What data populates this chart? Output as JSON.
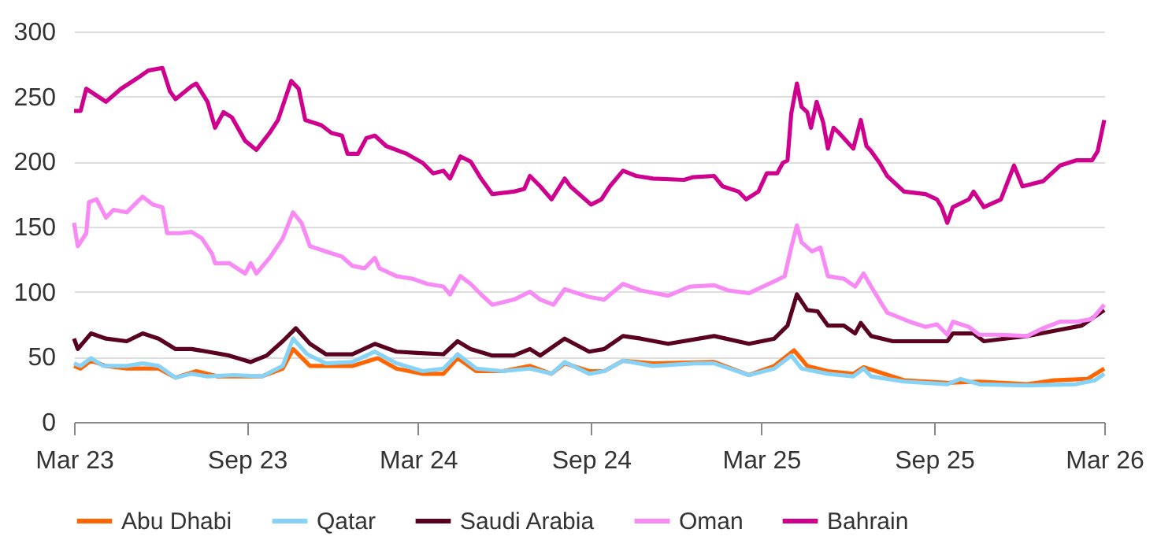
{
  "chart_data": {
    "type": "line",
    "xlim": [
      "2023-03-01",
      "2026-03-01"
    ],
    "xticks": [
      {
        "value": "2023-03-01",
        "label": "Mar 23"
      },
      {
        "value": "2023-09-01",
        "label": "Sep 23"
      },
      {
        "value": "2024-03-01",
        "label": "Mar 24"
      },
      {
        "value": "2024-09-01",
        "label": "Sep 24"
      },
      {
        "value": "2025-03-01",
        "label": "Mar 25"
      },
      {
        "value": "2025-09-01",
        "label": "Sep 25"
      },
      {
        "value": "2026-03-01",
        "label": "Mar 26"
      }
    ],
    "ylim": [
      0,
      300
    ],
    "yticks": [
      0,
      50,
      100,
      150,
      200,
      250,
      300
    ],
    "grid": "y",
    "legend": "bottom",
    "marker": "none",
    "line_style": "solid",
    "series": [
      {
        "name": "Abu Dhabi",
        "color": "#ff6600",
        "x": [
          "2023-03-01",
          "2023-03-08",
          "2023-03-19",
          "2023-04-04",
          "2023-04-26",
          "2023-05-30",
          "2023-06-17",
          "2023-07-09",
          "2023-08-01",
          "2023-09-17",
          "2023-10-09",
          "2023-10-20",
          "2023-11-07",
          "2023-11-24",
          "2023-12-22",
          "2024-01-18",
          "2024-02-07",
          "2024-03-06",
          "2024-03-28",
          "2024-04-12",
          "2024-05-02",
          "2024-05-30",
          "2024-06-28",
          "2024-07-21",
          "2024-08-04",
          "2024-08-30",
          "2024-09-15",
          "2024-10-05",
          "2024-11-06",
          "2025-01-10",
          "2025-02-16",
          "2025-03-15",
          "2025-04-05",
          "2025-04-19",
          "2025-05-11",
          "2025-06-07",
          "2025-06-18",
          "2025-07-31",
          "2025-09-15",
          "2025-10-19",
          "2025-12-09",
          "2026-01-07",
          "2026-02-11",
          "2026-03-01"
        ],
        "values": [
          43,
          41,
          47,
          43,
          41,
          41,
          34,
          39,
          35,
          35,
          41,
          56,
          43,
          43,
          43,
          49,
          41,
          37,
          37,
          49,
          39,
          39,
          43,
          37,
          45,
          39,
          39,
          47,
          45,
          46,
          36,
          43,
          55,
          43,
          39,
          37,
          42,
          32,
          30,
          31,
          29,
          32,
          33,
          41
        ]
      },
      {
        "name": "Qatar",
        "color": "#87d3f8",
        "x": [
          "2023-03-01",
          "2023-03-08",
          "2023-03-19",
          "2023-04-01",
          "2023-04-26",
          "2023-05-13",
          "2023-05-30",
          "2023-06-17",
          "2023-07-04",
          "2023-07-21",
          "2023-08-18",
          "2023-09-17",
          "2023-10-09",
          "2023-10-20",
          "2023-11-04",
          "2023-11-24",
          "2023-12-22",
          "2024-01-15",
          "2024-02-07",
          "2024-03-06",
          "2024-03-28",
          "2024-04-12",
          "2024-05-02",
          "2024-05-30",
          "2024-06-28",
          "2024-07-21",
          "2024-08-04",
          "2024-08-30",
          "2024-09-15",
          "2024-10-05",
          "2024-11-06",
          "2024-12-21",
          "2025-01-10",
          "2025-02-16",
          "2025-03-15",
          "2025-04-02",
          "2025-04-13",
          "2025-05-11",
          "2025-06-07",
          "2025-06-18",
          "2025-06-26",
          "2025-07-31",
          "2025-09-15",
          "2025-09-29",
          "2025-10-19",
          "2025-12-09",
          "2026-01-30",
          "2026-02-19",
          "2026-03-01"
        ],
        "values": [
          45,
          43,
          49,
          43,
          43,
          45,
          43,
          34,
          37,
          35,
          36,
          35,
          43,
          64,
          52,
          45,
          46,
          54,
          45,
          39,
          41,
          52,
          41,
          39,
          41,
          37,
          46,
          37,
          39,
          47,
          43,
          45,
          45,
          36,
          41,
          51,
          41,
          37,
          35,
          41,
          35,
          31,
          29,
          33,
          29,
          28,
          29,
          32,
          37
        ]
      },
      {
        "name": "Saudi Arabia",
        "color": "#5a0020",
        "x": [
          "2023-03-01",
          "2023-03-05",
          "2023-03-19",
          "2023-04-04",
          "2023-04-26",
          "2023-05-13",
          "2023-05-30",
          "2023-06-17",
          "2023-07-04",
          "2023-07-21",
          "2023-08-13",
          "2023-09-05",
          "2023-09-22",
          "2023-10-09",
          "2023-10-23",
          "2023-11-07",
          "2023-11-24",
          "2023-12-22",
          "2024-01-15",
          "2024-02-07",
          "2024-02-29",
          "2024-03-28",
          "2024-04-12",
          "2024-04-26",
          "2024-05-19",
          "2024-06-11",
          "2024-06-28",
          "2024-07-09",
          "2024-08-04",
          "2024-08-30",
          "2024-09-15",
          "2024-10-05",
          "2024-10-24",
          "2024-11-22",
          "2025-01-10",
          "2025-02-16",
          "2025-03-15",
          "2025-03-29",
          "2025-04-08",
          "2025-04-19",
          "2025-04-30",
          "2025-05-11",
          "2025-05-28",
          "2025-06-09",
          "2025-06-15",
          "2025-06-26",
          "2025-07-19",
          "2025-08-23",
          "2025-09-15",
          "2025-09-21",
          "2025-10-13",
          "2025-10-24",
          "2025-12-09",
          "2026-01-07",
          "2026-02-05",
          "2026-03-01"
        ],
        "values": [
          64,
          56,
          68,
          64,
          62,
          68,
          64,
          56,
          56,
          54,
          51,
          46,
          51,
          62,
          72,
          60,
          52,
          52,
          60,
          54,
          53,
          52,
          62,
          56,
          51,
          51,
          56,
          51,
          64,
          54,
          56,
          66,
          64,
          60,
          66,
          60,
          64,
          74,
          98,
          86,
          85,
          74,
          74,
          68,
          76,
          66,
          62,
          62,
          62,
          68,
          68,
          62,
          66,
          70,
          74,
          86
        ]
      },
      {
        "name": "Oman",
        "color": "#f78af5",
        "x": [
          "2023-03-01",
          "2023-03-05",
          "2023-03-14",
          "2023-03-17",
          "2023-03-25",
          "2023-04-04",
          "2023-04-12",
          "2023-04-26",
          "2023-05-07",
          "2023-05-13",
          "2023-05-24",
          "2023-06-03",
          "2023-06-08",
          "2023-06-22",
          "2023-07-04",
          "2023-07-15",
          "2023-07-26",
          "2023-07-29",
          "2023-08-13",
          "2023-08-30",
          "2023-09-05",
          "2023-09-11",
          "2023-09-25",
          "2023-10-09",
          "2023-10-20",
          "2023-10-29",
          "2023-11-07",
          "2023-11-24",
          "2023-12-11",
          "2023-12-22",
          "2024-01-04",
          "2024-01-15",
          "2024-01-20",
          "2024-02-07",
          "2024-02-24",
          "2024-03-11",
          "2024-03-28",
          "2024-04-04",
          "2024-04-15",
          "2024-04-26",
          "2024-05-07",
          "2024-05-19",
          "2024-06-11",
          "2024-06-28",
          "2024-07-09",
          "2024-07-23",
          "2024-08-04",
          "2024-08-30",
          "2024-09-15",
          "2024-10-05",
          "2024-10-24",
          "2024-11-22",
          "2024-12-15",
          "2025-01-10",
          "2025-01-25",
          "2025-02-16",
          "2025-03-15",
          "2025-03-26",
          "2025-04-02",
          "2025-04-08",
          "2025-04-13",
          "2025-04-24",
          "2025-05-03",
          "2025-05-11",
          "2025-05-28",
          "2025-06-09",
          "2025-06-18",
          "2025-06-26",
          "2025-07-13",
          "2025-08-06",
          "2025-08-23",
          "2025-09-04",
          "2025-09-15",
          "2025-09-21",
          "2025-10-08",
          "2025-10-19",
          "2025-11-06",
          "2025-12-09",
          "2025-12-26",
          "2026-01-13",
          "2026-01-30",
          "2026-02-16",
          "2026-03-01"
        ],
        "values": [
          153,
          135,
          145,
          169,
          171,
          157,
          163,
          161,
          169,
          173,
          167,
          165,
          145,
          145,
          146,
          141,
          129,
          122,
          122,
          114,
          122,
          114,
          126,
          141,
          161,
          153,
          135,
          131,
          127,
          120,
          118,
          126,
          118,
          112,
          110,
          106,
          104,
          98,
          112,
          106,
          98,
          90,
          94,
          100,
          94,
          90,
          102,
          96,
          94,
          106,
          101,
          97,
          104,
          105,
          101,
          99,
          108,
          112,
          134,
          151,
          138,
          131,
          134,
          112,
          110,
          104,
          114,
          104,
          84,
          77,
          73,
          75,
          67,
          77,
          73,
          67,
          67,
          66,
          72,
          77,
          77,
          79,
          90
        ]
      },
      {
        "name": "Bahrain",
        "color": "#d0008f",
        "x": [
          "2023-03-01",
          "2023-03-08",
          "2023-03-14",
          "2023-04-04",
          "2023-04-20",
          "2023-05-07",
          "2023-05-19",
          "2023-06-03",
          "2023-06-11",
          "2023-06-17",
          "2023-07-04",
          "2023-07-09",
          "2023-07-21",
          "2023-07-29",
          "2023-08-07",
          "2023-08-16",
          "2023-08-30",
          "2023-09-11",
          "2023-09-25",
          "2023-10-04",
          "2023-10-18",
          "2023-10-26",
          "2023-11-02",
          "2023-11-19",
          "2023-11-30",
          "2023-12-11",
          "2023-12-17",
          "2023-12-28",
          "2024-01-06",
          "2024-01-15",
          "2024-01-27",
          "2024-02-18",
          "2024-03-06",
          "2024-03-17",
          "2024-03-28",
          "2024-04-04",
          "2024-04-15",
          "2024-04-26",
          "2024-05-07",
          "2024-05-19",
          "2024-06-11",
          "2024-06-22",
          "2024-06-28",
          "2024-07-09",
          "2024-07-21",
          "2024-08-04",
          "2024-08-10",
          "2024-09-01",
          "2024-09-12",
          "2024-09-21",
          "2024-10-05",
          "2024-10-19",
          "2024-11-06",
          "2024-12-09",
          "2024-12-18",
          "2025-01-10",
          "2025-01-19",
          "2025-02-05",
          "2025-02-13",
          "2025-02-26",
          "2025-03-07",
          "2025-03-18",
          "2025-03-24",
          "2025-03-29",
          "2025-04-02",
          "2025-04-08",
          "2025-04-13",
          "2025-04-19",
          "2025-04-23",
          "2025-04-29",
          "2025-05-06",
          "2025-05-11",
          "2025-05-17",
          "2025-05-23",
          "2025-06-07",
          "2025-06-15",
          "2025-06-21",
          "2025-06-26",
          "2025-07-05",
          "2025-07-13",
          "2025-07-31",
          "2025-08-23",
          "2025-09-04",
          "2025-09-09",
          "2025-09-15",
          "2025-09-21",
          "2025-10-08",
          "2025-10-13",
          "2025-10-24",
          "2025-11-11",
          "2025-11-25",
          "2025-12-04",
          "2025-12-26",
          "2026-01-13",
          "2026-01-30",
          "2026-02-16",
          "2026-02-22",
          "2026-03-01"
        ],
        "values": [
          239,
          239,
          256,
          246,
          256,
          264,
          270,
          272,
          254,
          248,
          258,
          260,
          246,
          226,
          238,
          234,
          216,
          209,
          222,
          232,
          262,
          256,
          232,
          228,
          222,
          220,
          206,
          206,
          218,
          220,
          212,
          206,
          199,
          191,
          193,
          187,
          204,
          200,
          187,
          175,
          177,
          179,
          189,
          181,
          171,
          187,
          181,
          167,
          171,
          181,
          193,
          189,
          187,
          186,
          188,
          189,
          181,
          177,
          171,
          177,
          191,
          191,
          199,
          201,
          237,
          260,
          242,
          238,
          226,
          246,
          230,
          210,
          226,
          222,
          210,
          232,
          212,
          208,
          199,
          189,
          177,
          175,
          171,
          165,
          153,
          165,
          171,
          177,
          165,
          171,
          197,
          181,
          185,
          197,
          201,
          201,
          208,
          232
        ]
      }
    ]
  }
}
